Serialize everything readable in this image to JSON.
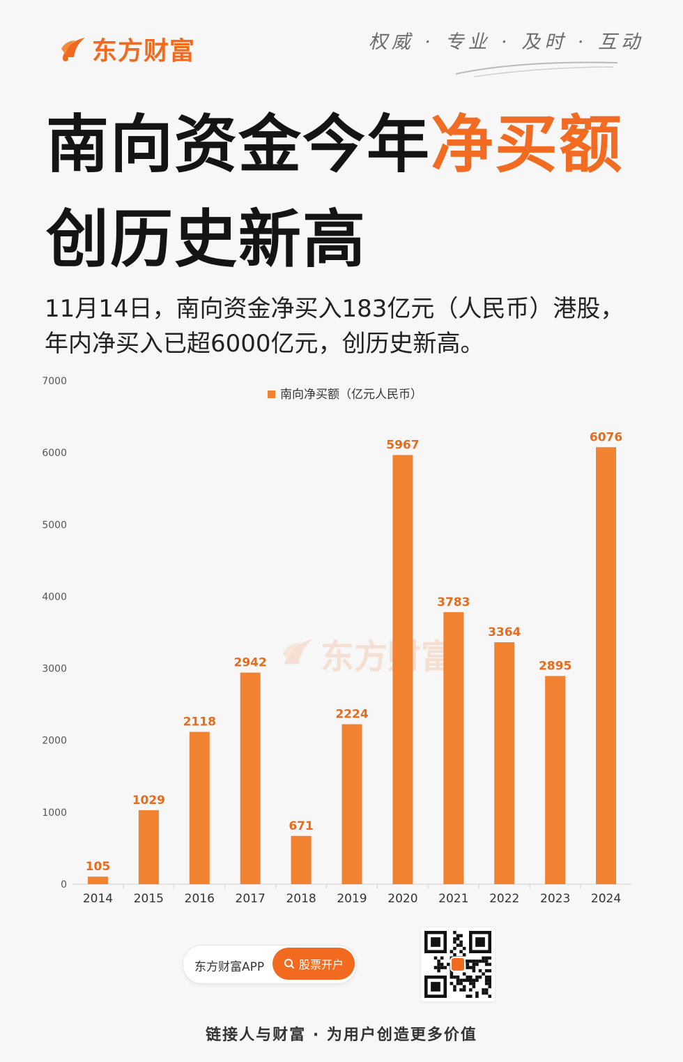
{
  "brand": {
    "name": "东方财富",
    "color": "#f06a1f",
    "logo_icon": "flame-logo-icon"
  },
  "slogan": "权威 · 专业 · 及时 · 互动",
  "headline": {
    "part1": "南向资金今年",
    "highlight": "净买额",
    "part2": "创历史新高",
    "highlight_color": "#f26b22"
  },
  "subtitle": "11月14日，南向资金净买入183亿元（人民币）港股，年内净买入已超6000亿元，创历史新高。",
  "chart_data": {
    "type": "bar",
    "categories": [
      "2014",
      "2015",
      "2016",
      "2017",
      "2018",
      "2019",
      "2020",
      "2021",
      "2022",
      "2023",
      "2024"
    ],
    "series": [
      {
        "name": "南向净买额（亿元人民币）",
        "values": [
          105,
          1029,
          2118,
          2942,
          671,
          2224,
          5967,
          3783,
          3364,
          2895,
          6076
        ],
        "color": "#f08232"
      }
    ],
    "data_labels": [
      "105",
      "1029",
      "2118",
      "2942",
      "671",
      "2224",
      "5967",
      "3783",
      "3364",
      "2895",
      "6076"
    ],
    "ylim": [
      0,
      7000
    ],
    "yticks": [
      "0",
      "1000",
      "2000",
      "3000",
      "4000",
      "5000",
      "6000",
      "7000"
    ],
    "grid": false,
    "legend": "top-center",
    "label_color": "#e46c1e"
  },
  "watermark": "东方财富",
  "app": {
    "name": "东方财富APP",
    "button_label": "股票开户",
    "search_icon": "search-icon"
  },
  "qr_icon": "qr-code-icon",
  "footer": "链接人与财富 · 为用户创造更多价值"
}
